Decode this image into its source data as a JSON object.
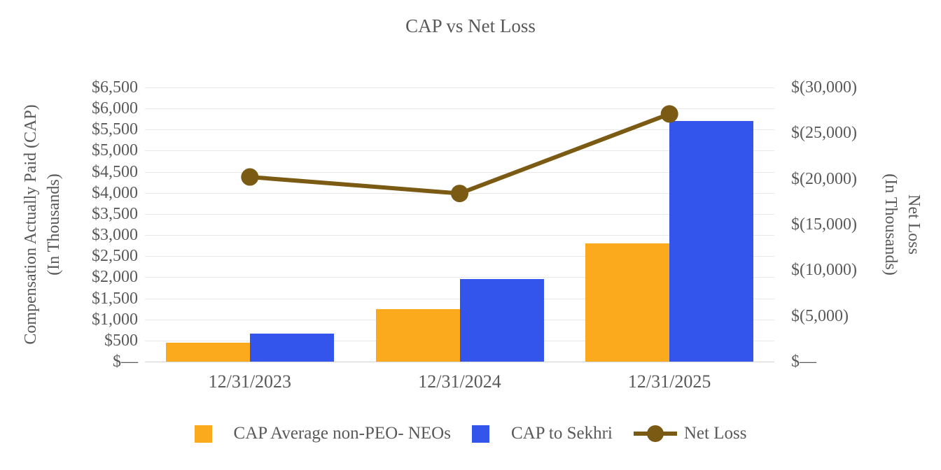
{
  "chart_data": {
    "type": "bar",
    "subtype": "grouped-bar-with-line-overlay",
    "title": "CAP vs Net Loss",
    "categories": [
      "12/31/2023",
      "12/31/2024",
      "12/31/2025"
    ],
    "series": [
      {
        "name": "CAP Average non-PEO- NEOs",
        "type": "bar",
        "axis": "left",
        "color": "#FAAA1C",
        "values": [
          450,
          1250,
          2800
        ]
      },
      {
        "name": "CAP to Sekhri",
        "type": "bar",
        "axis": "left",
        "color": "#3355EB",
        "values": [
          660,
          1950,
          5700
        ]
      },
      {
        "name": "Net Loss",
        "type": "line",
        "axis": "right",
        "color": "#7B5A14",
        "values": [
          -20200,
          -18400,
          -27100
        ]
      }
    ],
    "left_axis": {
      "label_line1": "Compensation Actually Paid (CAP)",
      "label_line2": "(In Thousands)",
      "min": 0,
      "max": 6500,
      "step": 500,
      "tick_labels": [
        "$6,500",
        "$6,000",
        "$5,500",
        "$5,000",
        "$4,500",
        "$4,000",
        "$3,500",
        "$3,000",
        "$2,500",
        "$2,000",
        "$1,500",
        "$1,000",
        "$500",
        "$—"
      ]
    },
    "right_axis": {
      "label_line1": "Net Loss",
      "label_line2": "(In Thousands)",
      "min": 0,
      "max": -30000,
      "step": -5000,
      "tick_labels": [
        "$(30,000)",
        "$(25,000)",
        "$(20,000)",
        "$(15,000)",
        "$(10,000)",
        "$(5,000)",
        "$—"
      ]
    },
    "legend": [
      {
        "label": "CAP Average non-PEO- NEOs",
        "marker": "square",
        "color": "#FAAA1C"
      },
      {
        "label": "CAP to Sekhri",
        "marker": "square",
        "color": "#3355EB"
      },
      {
        "label": "Net Loss",
        "marker": "line-dot",
        "color": "#7B5A14"
      }
    ],
    "legend_position": "bottom",
    "grid": true,
    "colors": {
      "text": "#595959",
      "gridline": "#E8E8E8",
      "baseline": "#D4D4D4",
      "background": "#FFFFFF"
    }
  }
}
